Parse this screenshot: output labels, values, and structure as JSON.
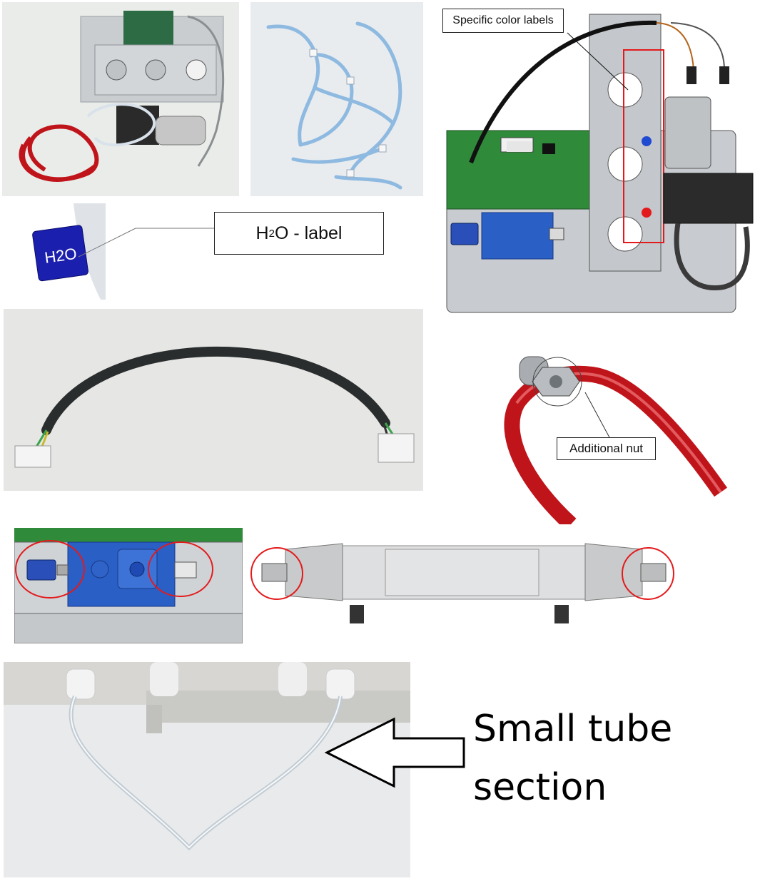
{
  "labels": {
    "specific_color": "Specific color labels",
    "h2o_prefix": "H",
    "h2o_sub": "2",
    "h2o_suffix": "O - label",
    "h2o_badge": "H2O",
    "additional_nut": "Additional nut",
    "small_tube_line1": "Small tube",
    "small_tube_line2": "section"
  },
  "colors": {
    "background": "#ffffff",
    "red_tube": "#c0141b",
    "blue_tube": "#8eb9e0",
    "pcb_green": "#2f8a3a",
    "blue_block": "#2a5fc6",
    "h2o_badge": "#1b1fae",
    "marker_red": "#e31a1c",
    "marker_blue": "#1f4ad1"
  },
  "icons": [
    "arrow-outline-icon"
  ]
}
